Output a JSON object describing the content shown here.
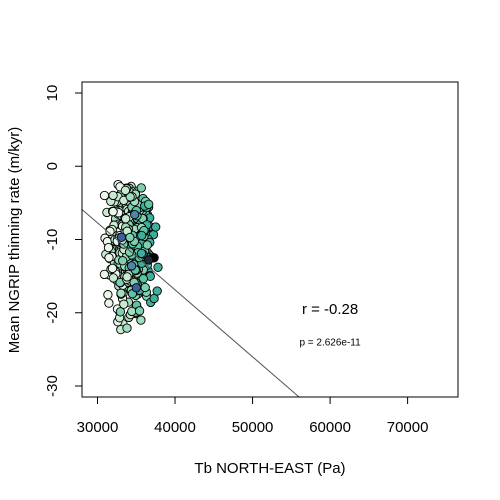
{
  "chart_data": {
    "type": "scatter",
    "title": "",
    "xlabel": "Tb NORTH-EAST (Pa)",
    "ylabel": "Mean NGRIP thinning rate (m/kyr)",
    "xlim": [
      28000,
      76500
    ],
    "ylim": [
      -31.5,
      11.5
    ],
    "x_ticks": [
      30000,
      40000,
      50000,
      60000,
      70000
    ],
    "y_ticks": [
      -30,
      -20,
      -10,
      0,
      10
    ],
    "grid": false,
    "legend": "none",
    "annotations": [
      {
        "name": "correlation",
        "text": "r = -0.28",
        "x": 60000,
        "y": -20.2
      },
      {
        "name": "p-value",
        "text": "p = 2.626e-11",
        "x": 60000,
        "y": -24.5
      }
    ],
    "fit_line": {
      "x": [
        28000,
        56000
      ],
      "y": [
        -5.9,
        -31.5
      ],
      "color": "#555555"
    },
    "palette": [
      "#eaf7ec",
      "#c7ead0",
      "#a3dcbe",
      "#7fd0b0",
      "#5cc3a4",
      "#3fae9c",
      "#4f86a8",
      "#3a5f9a"
    ],
    "point_count": 520,
    "cluster": {
      "x_range": [
        30800,
        37800
      ],
      "y_range": [
        -22.5,
        -2.5
      ],
      "x_center": 34200,
      "y_center": -11
    },
    "outliers": [
      {
        "x": 37200,
        "y": -12.5,
        "color": "#000000"
      },
      {
        "x": 36600,
        "y": -12.8,
        "color": "#1f2a3a"
      },
      {
        "x": 33000,
        "y": -22.3,
        "color": "#c7ead0"
      },
      {
        "x": 33800,
        "y": -22.1,
        "color": "#a3dcbe"
      },
      {
        "x": 30900,
        "y": -4.0,
        "color": "#eaf7ec"
      },
      {
        "x": 32900,
        "y": -2.8,
        "color": "#eaf7ec"
      },
      {
        "x": 33600,
        "y": -3.3,
        "color": "#c7ead0"
      },
      {
        "x": 36600,
        "y": -5.2,
        "color": "#5cc3a4"
      },
      {
        "x": 37800,
        "y": -13.8,
        "color": "#3fae9c"
      },
      {
        "x": 35600,
        "y": -21.0,
        "color": "#a3dcbe"
      },
      {
        "x": 34800,
        "y": -6.6,
        "color": "#4f86a8"
      },
      {
        "x": 33100,
        "y": -9.7,
        "color": "#3a5f9a"
      },
      {
        "x": 35000,
        "y": -16.6,
        "color": "#3a5f9a"
      },
      {
        "x": 34400,
        "y": -13.6,
        "color": "#4f86a8"
      }
    ]
  }
}
